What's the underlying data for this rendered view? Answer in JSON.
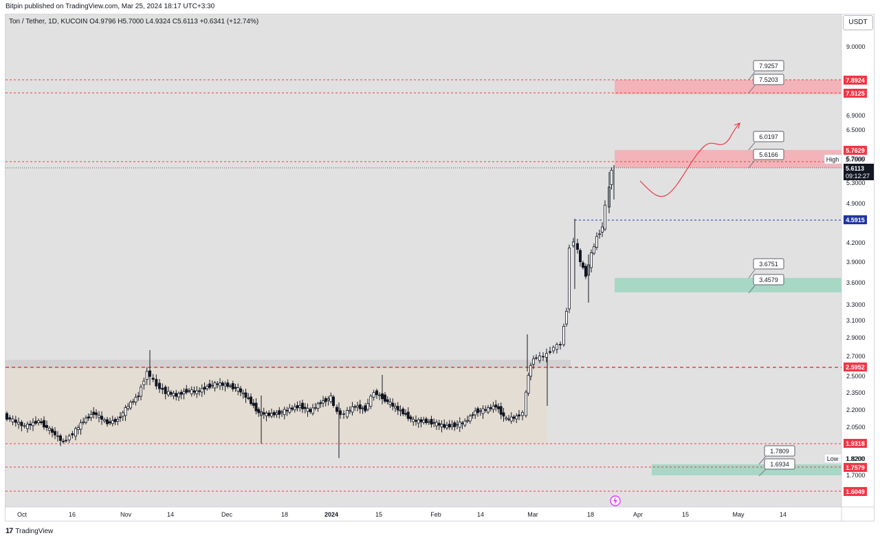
{
  "header": {
    "published": "Bitpin published on TradingView.com, Mar 25, 2024 18:17 UTC+3:30",
    "symbol_line": "Ton / Tether, 1D, KUCOIN  O4.9796  H5.7000  L4.9324  C5.6113  +0.6341 (+12.74%)",
    "currency": "USDT"
  },
  "footer": {
    "logo_text": "TradingView"
  },
  "colors": {
    "background": "#e1e1e1",
    "candle_up": "#ffffff",
    "candle_down": "#131722",
    "red": "#f23645",
    "red_zone": "#f2b4b9",
    "green_zone": "#a7d7c5",
    "range_box": "#e4ddd3",
    "blue": "#2134a1"
  },
  "chart_data": {
    "type": "candlestick",
    "title": "Ton / Tether, 1D, KUCOIN",
    "interval": "1D",
    "last_candle": {
      "open": 4.9796,
      "high": 5.7,
      "low": 4.9324,
      "close": 5.6113,
      "change": 0.6341,
      "change_pct": 12.74
    },
    "x_ticks": [
      "Oct",
      "16",
      "Nov",
      "14",
      "Dec",
      "18",
      "2024",
      "15",
      "Feb",
      "14",
      "Mar",
      "18",
      "Apr",
      "15",
      "May",
      "14"
    ],
    "y_ticks": [
      "9.0000",
      "6.9000",
      "6.5000",
      "5.7000",
      "5.3000",
      "4.9000",
      "4.2000",
      "3.9000",
      "3.6000",
      "3.3000",
      "3.1000",
      "2.9000",
      "2.7000",
      "2.5000",
      "2.3500",
      "2.2000",
      "2.0500",
      "1.8200",
      "1.7000"
    ],
    "price_lines": [
      {
        "label": "7.8924",
        "style": "dashed"
      },
      {
        "label": "7.5125",
        "style": "dashed"
      },
      {
        "label": "5.7629",
        "style": "dashed"
      },
      {
        "label": "4.5915",
        "style": "dashed-blue"
      },
      {
        "label": "2.5952",
        "style": "dashed-bold"
      },
      {
        "label": "1.9318",
        "style": "dashed"
      },
      {
        "label": "1.7579",
        "style": "dashed"
      },
      {
        "label": "1.6049",
        "style": "dashed"
      }
    ],
    "current_price": {
      "label": "5.6113",
      "countdown": "09:12:27"
    },
    "high_marker": {
      "text": "High",
      "value": "5.7000"
    },
    "low_marker": {
      "text": "Low",
      "value": "1.8200"
    },
    "zones": [
      {
        "name": "resistance-upper",
        "color": "red",
        "top": 7.8924,
        "bottom": 7.5125
      },
      {
        "name": "resistance-current",
        "color": "red",
        "top": 5.7629,
        "bottom": 5.5
      },
      {
        "name": "support-mid",
        "color": "green",
        "top": 3.6751,
        "bottom": 3.4579
      },
      {
        "name": "support-lower",
        "color": "green",
        "top": 1.7809,
        "bottom": 1.6934
      }
    ],
    "callouts": [
      "7.9257",
      "7.5203",
      "6.0197",
      "5.6166",
      "3.6751",
      "3.4579",
      "1.7809",
      "1.6934"
    ]
  }
}
